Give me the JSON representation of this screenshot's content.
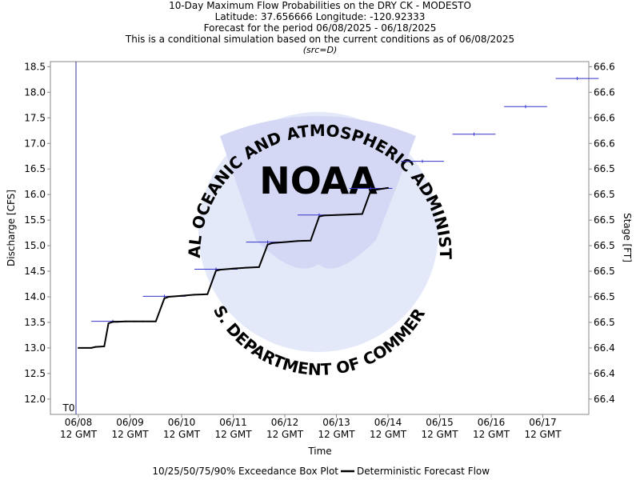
{
  "titles": {
    "line1": "10-Day Maximum Flow Probabilities on the DRY CK - MODESTO",
    "line2": "Latitude: 37.656666 Longitude: -120.92333",
    "line3": "Forecast for the period 06/08/2025 - 06/18/2025",
    "line4": "This is a conditional simulation based on the current conditions as of 06/08/2025",
    "line5": "(src=D)"
  },
  "watermark": {
    "logo_text": "NOAA",
    "ring_top": "NATIONAL OCEANIC AND ATMOSPHERIC ADMINISTRATION",
    "ring_bottom": "U.S. DEPARTMENT OF COMMERCE"
  },
  "colors": {
    "box": "#3333cc",
    "flow": "#000000",
    "watermark": "#dde4f7",
    "t0_line": "#333399"
  },
  "chart_data": {
    "type": "line",
    "xlabel": "Time",
    "ylabel": "Discharge [CFS]",
    "y2label": "Stage [FT]",
    "ylim": [
      11.7,
      18.6
    ],
    "yticks": [
      12.0,
      12.5,
      13.0,
      13.5,
      14.0,
      14.5,
      15.0,
      15.5,
      16.0,
      16.5,
      17.0,
      17.5,
      18.0,
      18.5
    ],
    "ytick_labels": [
      "12.0",
      "12.5",
      "13.0",
      "13.5",
      "14.0",
      "14.5",
      "15.0",
      "15.5",
      "16.0",
      "16.5",
      "17.0",
      "17.5",
      "18.0",
      "18.5"
    ],
    "y2tick_labels": [
      "66.4",
      "66.4",
      "66.4",
      "66.5",
      "66.5",
      "66.5",
      "66.5",
      "66.5",
      "66.5",
      "66.5",
      "66.6",
      "66.6",
      "66.6",
      "66.6"
    ],
    "xlim": [
      "06/08 12 GMT",
      "06/18 06 GMT"
    ],
    "x_tick_labels": [
      {
        "date": "06/08",
        "time": "12 GMT"
      },
      {
        "date": "06/09",
        "time": "12 GMT"
      },
      {
        "date": "06/10",
        "time": "12 GMT"
      },
      {
        "date": "06/11",
        "time": "12 GMT"
      },
      {
        "date": "06/12",
        "time": "12 GMT"
      },
      {
        "date": "06/13",
        "time": "12 GMT"
      },
      {
        "date": "06/14",
        "time": "12 GMT"
      },
      {
        "date": "06/15",
        "time": "12 GMT"
      },
      {
        "date": "06/16",
        "time": "12 GMT"
      },
      {
        "date": "06/17",
        "time": "12 GMT"
      }
    ],
    "t0_label": "T0",
    "grid": false,
    "legend": {
      "placement": "bottom",
      "items": [
        "10/25/50/75/90% Exceedance Box Plot",
        "Deterministic Forecast Flow"
      ]
    },
    "exceedance_boxes": [
      {
        "x_start": "06/08 18 GMT",
        "x_end": "06/09 14 GMT",
        "value": 13.52
      },
      {
        "x_start": "06/09 18 GMT",
        "x_end": "06/10 14 GMT",
        "value": 14.01
      },
      {
        "x_start": "06/10 18 GMT",
        "x_end": "06/11 14 GMT",
        "value": 14.54
      },
      {
        "x_start": "06/11 18 GMT",
        "x_end": "06/12 14 GMT",
        "value": 15.07
      },
      {
        "x_start": "06/12 18 GMT",
        "x_end": "06/13 14 GMT",
        "value": 15.6
      },
      {
        "x_start": "06/13 18 GMT",
        "x_end": "06/14 14 GMT",
        "value": 16.12
      },
      {
        "x_start": "06/14 18 GMT",
        "x_end": "06/15 14 GMT",
        "value": 16.65
      },
      {
        "x_start": "06/15 18 GMT",
        "x_end": "06/16 14 GMT",
        "value": 17.18
      },
      {
        "x_start": "06/16 18 GMT",
        "x_end": "06/17 14 GMT",
        "value": 17.72
      },
      {
        "x_start": "06/17 18 GMT",
        "x_end": "06/18 14 GMT",
        "value": 18.27
      }
    ],
    "series": [
      {
        "name": "Deterministic Forecast Flow",
        "x": [
          "06/08 12 GMT",
          "06/08 18 GMT",
          "06/08 20 GMT",
          "06/09 00 GMT",
          "06/09 02 GMT",
          "06/09 04 GMT",
          "06/09 06 GMT",
          "06/09 10 GMT",
          "06/09 14 GMT",
          "06/09 18 GMT",
          "06/10 00 GMT",
          "06/10 04 GMT",
          "06/10 06 GMT",
          "06/10 12 GMT",
          "06/10 18 GMT",
          "06/11 00 GMT",
          "06/11 04 GMT",
          "06/11 06 GMT",
          "06/11 12 GMT",
          "06/11 18 GMT",
          "06/12 00 GMT",
          "06/12 04 GMT",
          "06/12 06 GMT",
          "06/12 12 GMT",
          "06/12 18 GMT",
          "06/13 00 GMT",
          "06/13 04 GMT",
          "06/13 06 GMT",
          "06/13 12 GMT",
          "06/13 18 GMT",
          "06/14 00 GMT",
          "06/14 04 GMT",
          "06/14 12 GMT"
        ],
        "values": [
          13.0,
          13.0,
          13.02,
          13.03,
          13.48,
          13.51,
          13.51,
          13.52,
          13.52,
          13.52,
          13.52,
          13.97,
          14.0,
          14.02,
          14.04,
          14.05,
          14.51,
          14.53,
          14.55,
          14.57,
          14.58,
          15.02,
          15.05,
          15.07,
          15.09,
          15.1,
          15.57,
          15.59,
          15.6,
          15.61,
          15.62,
          16.08,
          16.13
        ]
      }
    ]
  }
}
